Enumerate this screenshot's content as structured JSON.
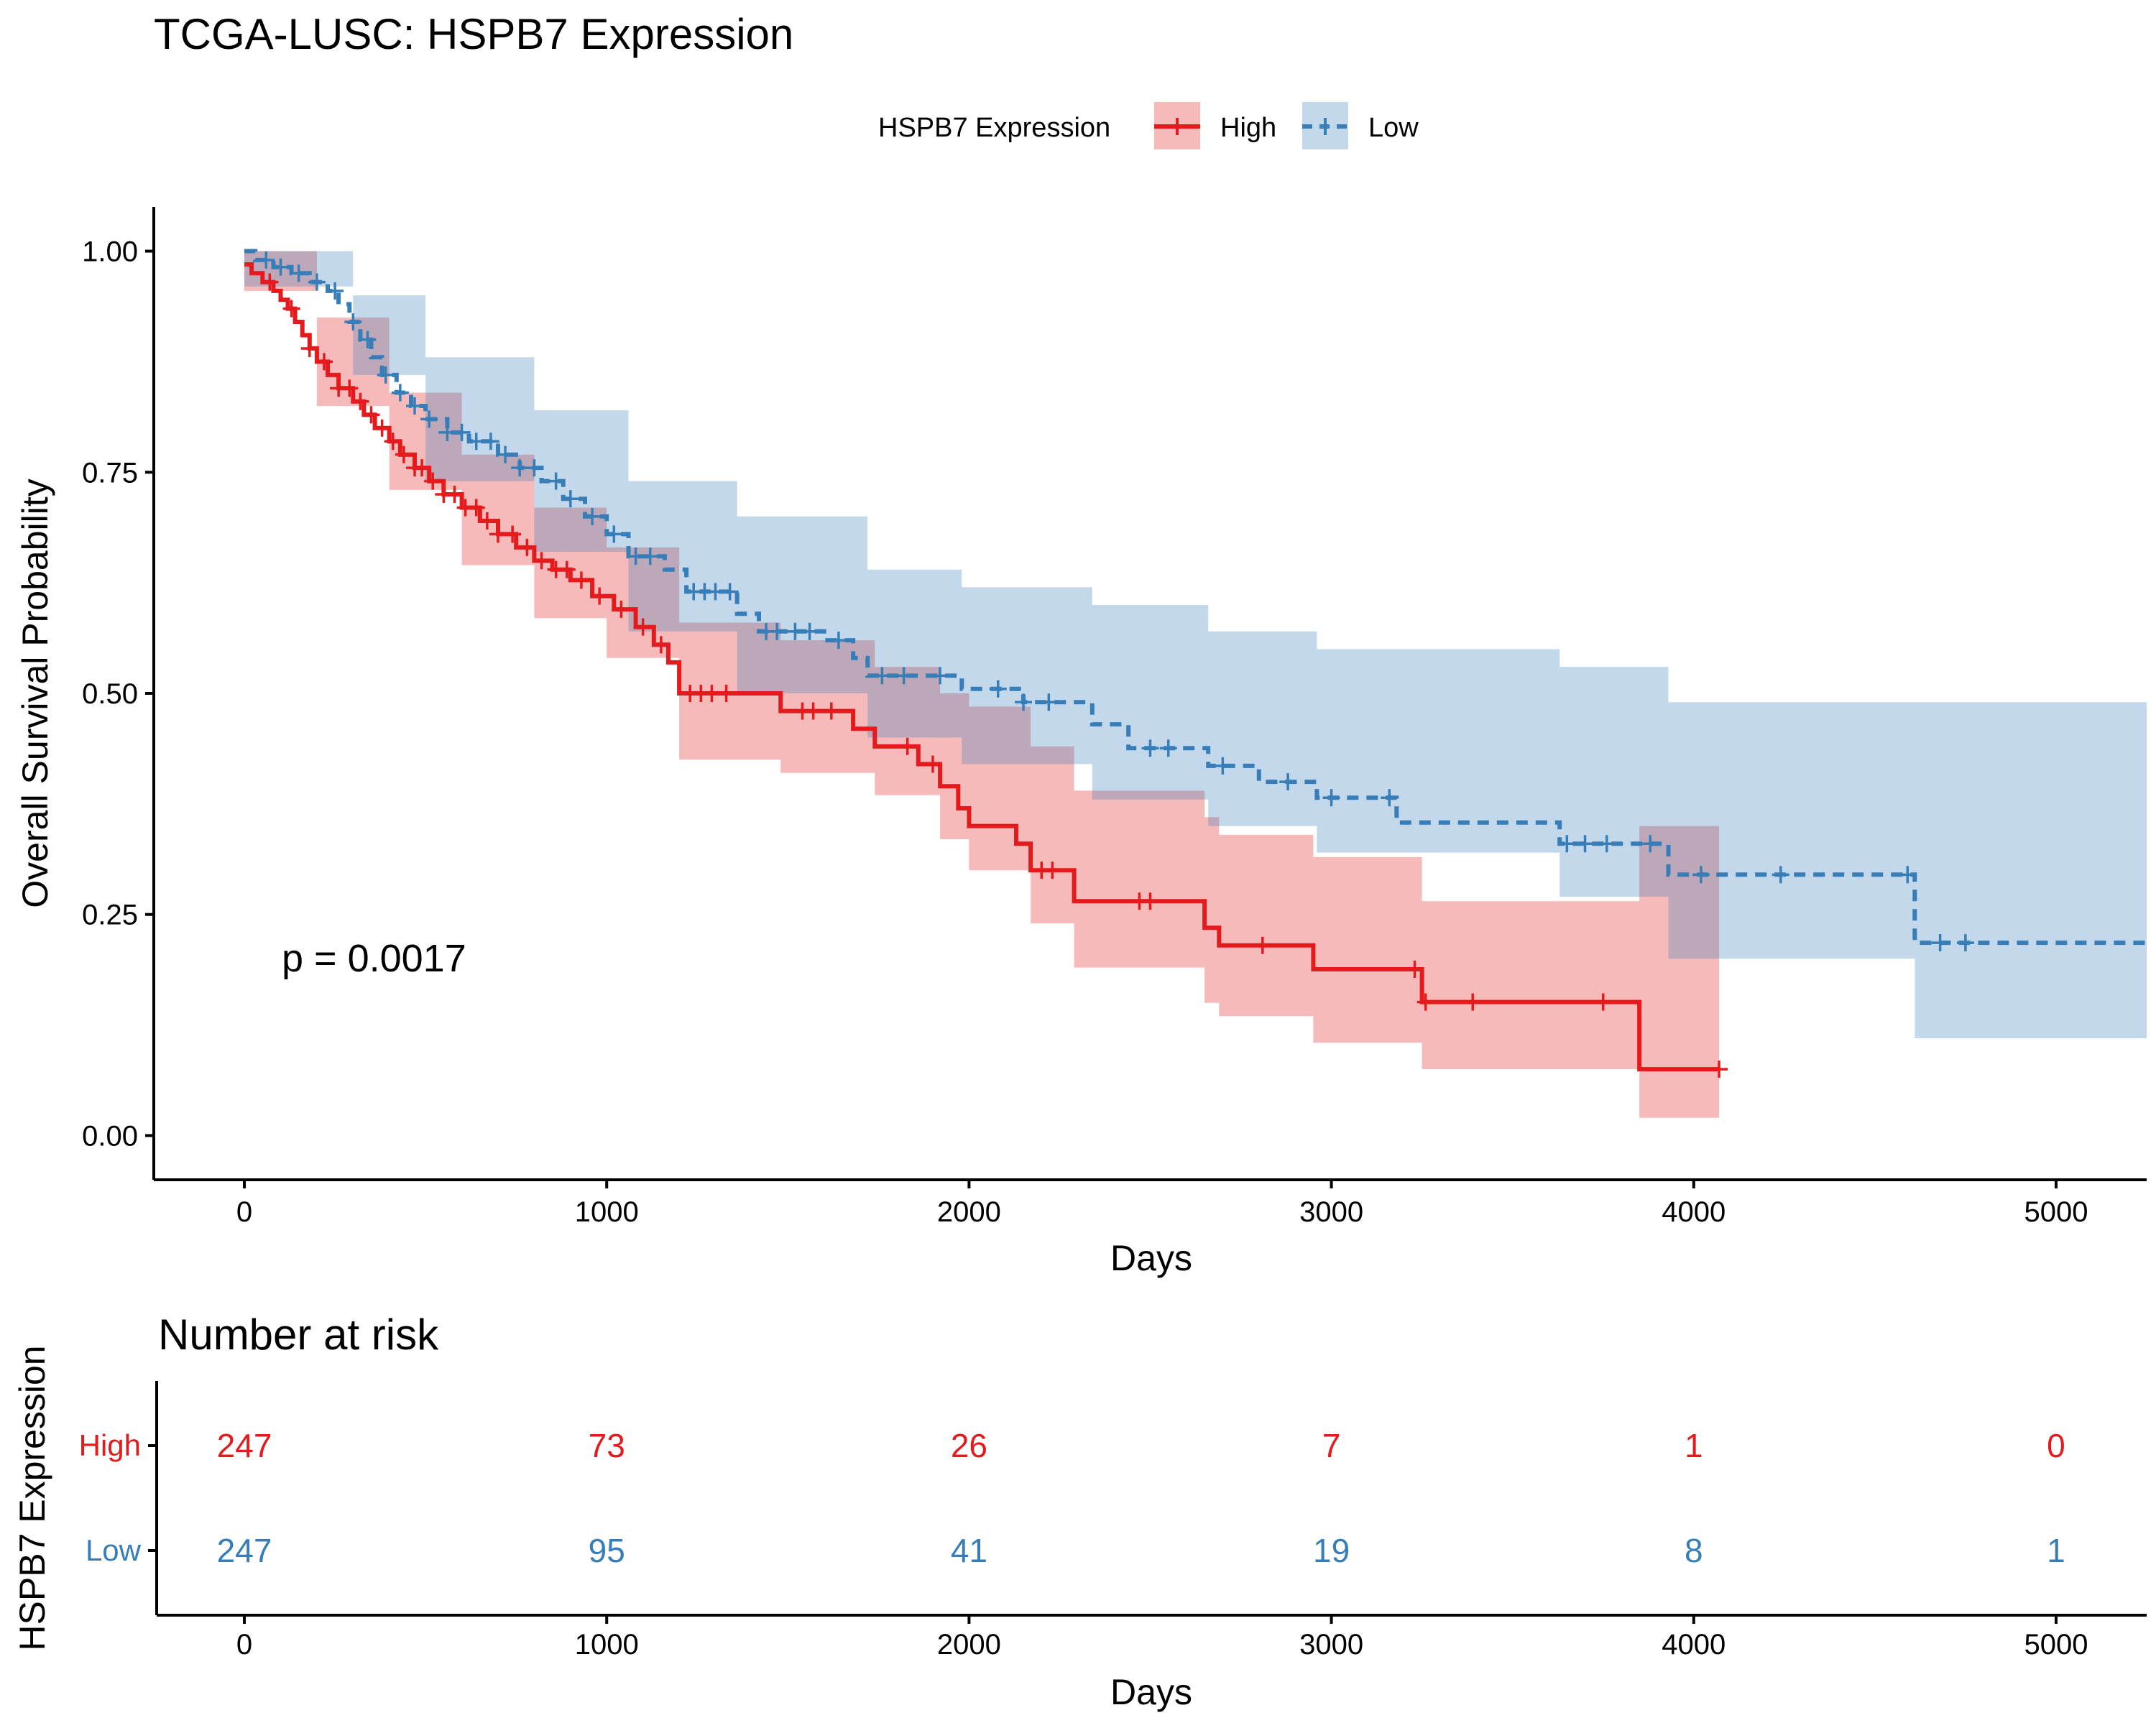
{
  "title": "TCGA-LUSC: HSPB7 Expression",
  "legend": {
    "title": "HSPB7 Expression",
    "items": [
      "High",
      "Low"
    ]
  },
  "pvalue_text": "p = 0.0017",
  "colors": {
    "High": "#E41A1C",
    "Low": "#377EB8"
  },
  "chart_data": [
    {
      "type": "line",
      "subtype": "kaplan-meier",
      "xlabel": "Days",
      "ylabel": "Overall Survival Probability",
      "xlim": [
        -250,
        5250
      ],
      "ylim": [
        -0.05,
        1.05
      ],
      "xticks": [
        0,
        1000,
        2000,
        3000,
        4000,
        5000
      ],
      "yticks": [
        0,
        0.25,
        0.5,
        0.75,
        1
      ],
      "ytick_labels": [
        "0.00",
        "0.25",
        "0.50",
        "0.75",
        "1.00"
      ],
      "legend_position": "top",
      "grid": false,
      "series": [
        {
          "name": "High",
          "line_style": "solid",
          "steps": [
            [
              0,
              0.985
            ],
            [
              20,
              0.975
            ],
            [
              50,
              0.965
            ],
            [
              80,
              0.955
            ],
            [
              100,
              0.945
            ],
            [
              120,
              0.935
            ],
            [
              140,
              0.92
            ],
            [
              160,
              0.905
            ],
            [
              180,
              0.89
            ],
            [
              200,
              0.875
            ],
            [
              230,
              0.86
            ],
            [
              260,
              0.845
            ],
            [
              300,
              0.83
            ],
            [
              330,
              0.815
            ],
            [
              360,
              0.8
            ],
            [
              400,
              0.785
            ],
            [
              430,
              0.77
            ],
            [
              470,
              0.755
            ],
            [
              510,
              0.74
            ],
            [
              550,
              0.725
            ],
            [
              600,
              0.71
            ],
            [
              650,
              0.695
            ],
            [
              700,
              0.68
            ],
            [
              750,
              0.665
            ],
            [
              800,
              0.65
            ],
            [
              850,
              0.64
            ],
            [
              900,
              0.628
            ],
            [
              960,
              0.61
            ],
            [
              1020,
              0.595
            ],
            [
              1080,
              0.575
            ],
            [
              1130,
              0.555
            ],
            [
              1170,
              0.535
            ],
            [
              1200,
              0.5
            ],
            [
              1480,
              0.48
            ],
            [
              1680,
              0.46
            ],
            [
              1740,
              0.44
            ],
            [
              1860,
              0.42
            ],
            [
              1920,
              0.395
            ],
            [
              1970,
              0.37
            ],
            [
              2000,
              0.35
            ],
            [
              2130,
              0.33
            ],
            [
              2170,
              0.3
            ],
            [
              2290,
              0.265
            ],
            [
              2650,
              0.235
            ],
            [
              2690,
              0.215
            ],
            [
              2950,
              0.188
            ],
            [
              3250,
              0.151
            ],
            [
              3850,
              0.075
            ],
            [
              4070,
              0.075
            ]
          ],
          "ci_upper": [
            [
              0,
              1.0
            ],
            [
              200,
              0.925
            ],
            [
              400,
              0.84
            ],
            [
              600,
              0.77
            ],
            [
              800,
              0.71
            ],
            [
              1000,
              0.665
            ],
            [
              1200,
              0.58
            ],
            [
              1480,
              0.56
            ],
            [
              1740,
              0.53
            ],
            [
              1920,
              0.5
            ],
            [
              2000,
              0.485
            ],
            [
              2170,
              0.44
            ],
            [
              2290,
              0.39
            ],
            [
              2650,
              0.36
            ],
            [
              2690,
              0.34
            ],
            [
              2950,
              0.315
            ],
            [
              3250,
              0.265
            ],
            [
              3850,
              0.35
            ],
            [
              4070,
              0.35
            ]
          ],
          "ci_lower": [
            [
              0,
              0.955
            ],
            [
              200,
              0.825
            ],
            [
              400,
              0.73
            ],
            [
              600,
              0.645
            ],
            [
              800,
              0.585
            ],
            [
              1000,
              0.54
            ],
            [
              1200,
              0.425
            ],
            [
              1480,
              0.41
            ],
            [
              1740,
              0.385
            ],
            [
              1920,
              0.335
            ],
            [
              2000,
              0.3
            ],
            [
              2170,
              0.24
            ],
            [
              2290,
              0.19
            ],
            [
              2650,
              0.15
            ],
            [
              2690,
              0.135
            ],
            [
              2950,
              0.105
            ],
            [
              3250,
              0.075
            ],
            [
              3850,
              0.02
            ],
            [
              4070,
              0.02
            ]
          ],
          "censor_times": [
            70,
            130,
            180,
            220,
            260,
            290,
            320,
            350,
            380,
            410,
            440,
            470,
            490,
            520,
            550,
            580,
            610,
            640,
            670,
            700,
            740,
            780,
            820,
            860,
            890,
            930,
            980,
            1040,
            1100,
            1150,
            1230,
            1260,
            1290,
            1330,
            1540,
            1570,
            1620,
            1830,
            1900,
            2200,
            2230,
            2470,
            2500,
            2810,
            3230,
            3260,
            3390,
            3750,
            4070
          ]
        },
        {
          "name": "Low",
          "line_style": "dashed",
          "steps": [
            [
              0,
              1.0
            ],
            [
              30,
              0.99
            ],
            [
              80,
              0.982
            ],
            [
              130,
              0.975
            ],
            [
              180,
              0.965
            ],
            [
              230,
              0.955
            ],
            [
              260,
              0.94
            ],
            [
              290,
              0.92
            ],
            [
              320,
              0.9
            ],
            [
              350,
              0.88
            ],
            [
              380,
              0.86
            ],
            [
              420,
              0.84
            ],
            [
              460,
              0.825
            ],
            [
              500,
              0.81
            ],
            [
              560,
              0.795
            ],
            [
              620,
              0.785
            ],
            [
              700,
              0.77
            ],
            [
              760,
              0.755
            ],
            [
              820,
              0.74
            ],
            [
              880,
              0.72
            ],
            [
              940,
              0.7
            ],
            [
              1000,
              0.68
            ],
            [
              1060,
              0.655
            ],
            [
              1160,
              0.64
            ],
            [
              1220,
              0.615
            ],
            [
              1360,
              0.59
            ],
            [
              1420,
              0.57
            ],
            [
              1600,
              0.56
            ],
            [
              1680,
              0.54
            ],
            [
              1720,
              0.52
            ],
            [
              1980,
              0.505
            ],
            [
              2150,
              0.49
            ],
            [
              2340,
              0.465
            ],
            [
              2440,
              0.438
            ],
            [
              2660,
              0.418
            ],
            [
              2800,
              0.4
            ],
            [
              2960,
              0.382
            ],
            [
              3180,
              0.354
            ],
            [
              3630,
              0.33
            ],
            [
              3930,
              0.295
            ],
            [
              4610,
              0.218
            ],
            [
              5250,
              0.218
            ]
          ],
          "ci_upper": [
            [
              0,
              1.0
            ],
            [
              300,
              0.95
            ],
            [
              500,
              0.88
            ],
            [
              800,
              0.82
            ],
            [
              1060,
              0.74
            ],
            [
              1360,
              0.7
            ],
            [
              1720,
              0.64
            ],
            [
              1980,
              0.62
            ],
            [
              2340,
              0.6
            ],
            [
              2660,
              0.57
            ],
            [
              2960,
              0.55
            ],
            [
              3630,
              0.53
            ],
            [
              3930,
              0.49
            ],
            [
              4610,
              0.49
            ],
            [
              5250,
              0.49
            ]
          ],
          "ci_lower": [
            [
              0,
              0.96
            ],
            [
              300,
              0.86
            ],
            [
              500,
              0.74
            ],
            [
              800,
              0.66
            ],
            [
              1060,
              0.57
            ],
            [
              1360,
              0.5
            ],
            [
              1720,
              0.45
            ],
            [
              1980,
              0.42
            ],
            [
              2340,
              0.38
            ],
            [
              2660,
              0.35
            ],
            [
              2960,
              0.32
            ],
            [
              3630,
              0.27
            ],
            [
              3930,
              0.2
            ],
            [
              4610,
              0.11
            ],
            [
              5250,
              0.11
            ]
          ],
          "censor_times": [
            60,
            100,
            150,
            200,
            250,
            300,
            340,
            390,
            430,
            470,
            510,
            560,
            600,
            640,
            680,
            720,
            760,
            800,
            860,
            900,
            960,
            1020,
            1080,
            1120,
            1240,
            1270,
            1300,
            1340,
            1440,
            1470,
            1520,
            1560,
            1640,
            1760,
            1820,
            1920,
            2080,
            2150,
            2220,
            2500,
            2550,
            2700,
            2880,
            3000,
            3160,
            3650,
            3700,
            3760,
            3880,
            4020,
            4240,
            4590,
            4680,
            4750
          ]
        }
      ]
    },
    {
      "type": "table",
      "title": "Number at risk",
      "ylabel": "HSPB7 Expression",
      "xlabel": "Days",
      "xticks": [
        0,
        1000,
        2000,
        3000,
        4000,
        5000
      ],
      "rows": [
        {
          "name": "High",
          "values": [
            247,
            73,
            26,
            7,
            1,
            0
          ]
        },
        {
          "name": "Low",
          "values": [
            247,
            95,
            41,
            19,
            8,
            1
          ]
        }
      ]
    }
  ]
}
